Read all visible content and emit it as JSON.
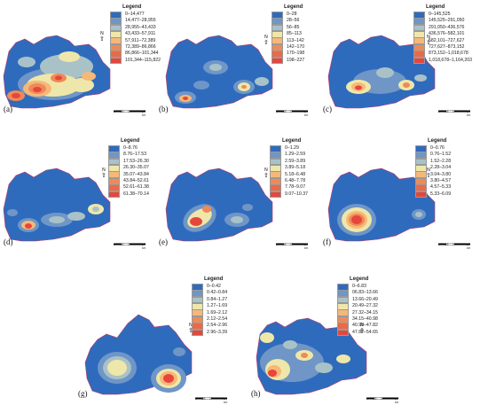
{
  "palette": [
    "#2f6bbd",
    "#6f96c6",
    "#a9c2c8",
    "#efe7a9",
    "#f6b878",
    "#ef8a58",
    "#e6463b"
  ],
  "panels": [
    {
      "label": "(a)",
      "legend_title": "Legend",
      "legend": [
        "0–14,477",
        "14,477–28,955",
        "28,955–43,433",
        "43,433–57,911",
        "57,911–72,389",
        "72,389–86,866",
        "86,866–101,344",
        "101,344–115,822"
      ],
      "north": "N",
      "scale": [
        "0",
        "0.5",
        "1",
        "2 km"
      ]
    },
    {
      "label": "(b)",
      "legend_title": "Legend",
      "legend": [
        "0–28",
        "28–56",
        "56–85",
        "85–113",
        "113–142",
        "142–170",
        "170–198",
        "198–227"
      ],
      "north": "N",
      "scale": [
        "0",
        "0.5",
        "1",
        "2 km"
      ]
    },
    {
      "label": "(c)",
      "legend_title": "Legend",
      "legend": [
        "0–145,525",
        "145,525–291,050",
        "291,050–436,576",
        "436,576–582,101",
        "582,101–727,627",
        "727,627–873,152",
        "873,152–1,018,678",
        "1,018,678–1,164,203"
      ],
      "north": "N",
      "scale": [
        "0",
        "0.5",
        "1",
        "2 km"
      ]
    },
    {
      "label": "(d)",
      "legend_title": "Legend",
      "legend": [
        "0–8.76",
        "8.76–17.53",
        "17.53–26.30",
        "26.30–35.07",
        "35.07–43.84",
        "43.84–52.61",
        "52.61–61.38",
        "61.38–70.14"
      ],
      "north": "N",
      "scale": [
        "0",
        "0.5",
        "1",
        "2 km"
      ]
    },
    {
      "label": "(e)",
      "legend_title": "Legend",
      "legend": [
        "0–1.29",
        "1.29–2.59",
        "2.59–3.89",
        "3.89–5.18",
        "5.18–6.48",
        "6.48–7.78",
        "7.78–9.07",
        "9.07–10.37"
      ],
      "north": "N",
      "scale": [
        "0",
        "0.5",
        "1",
        "2 km"
      ]
    },
    {
      "label": "(f)",
      "legend_title": "Legend",
      "legend": [
        "0–0.76",
        "0.76–1.52",
        "1.52–2.28",
        "2.28–3.04",
        "3.04–3.80",
        "3.80–4.57",
        "4.57–5.33",
        "5.33–6.09"
      ],
      "north": "N",
      "scale": [
        "0",
        "0.5",
        "1",
        "2 km"
      ]
    },
    {
      "label": "(g)",
      "legend_title": "Legend",
      "legend": [
        "0–0.42",
        "0.42–0.84",
        "0.84–1.27",
        "1.27–1.69",
        "1.69–2.12",
        "2.12–2.54",
        "2.54–2.96",
        "2.96–3.39"
      ],
      "north": "N",
      "scale": [
        "0",
        "0.5",
        "1",
        "2 km"
      ]
    },
    {
      "label": "(h)",
      "legend_title": "Legend",
      "legend": [
        "0–6.83",
        "06.83–13.66",
        "13.66–20.49",
        "20.49–27.32",
        "27.32–34.15",
        "34.15–40.98",
        "40.98–47.82",
        "47.82–54.65"
      ],
      "north": "N",
      "scale": [
        "0",
        "0.5",
        "1",
        "2 km"
      ]
    }
  ]
}
